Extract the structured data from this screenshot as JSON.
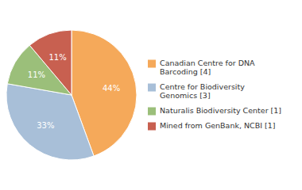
{
  "chart_data": {
    "type": "pie",
    "categories": [
      "Canadian Centre for DNA\nBarcoding [4]",
      "Centre for Biodiversity\nGenomics [3]",
      "Naturalis Biodiversity Center [1]",
      "Mined from GenBank, NCBI [1]"
    ],
    "values": [
      44,
      33,
      11,
      11
    ],
    "value_labels": [
      "44%",
      "33%",
      "11%",
      "11%"
    ],
    "data_labels": true,
    "colors": [
      "#F5A95A",
      "#A8BFD8",
      "#9BBF7A",
      "#C86050"
    ],
    "legend": "right"
  }
}
